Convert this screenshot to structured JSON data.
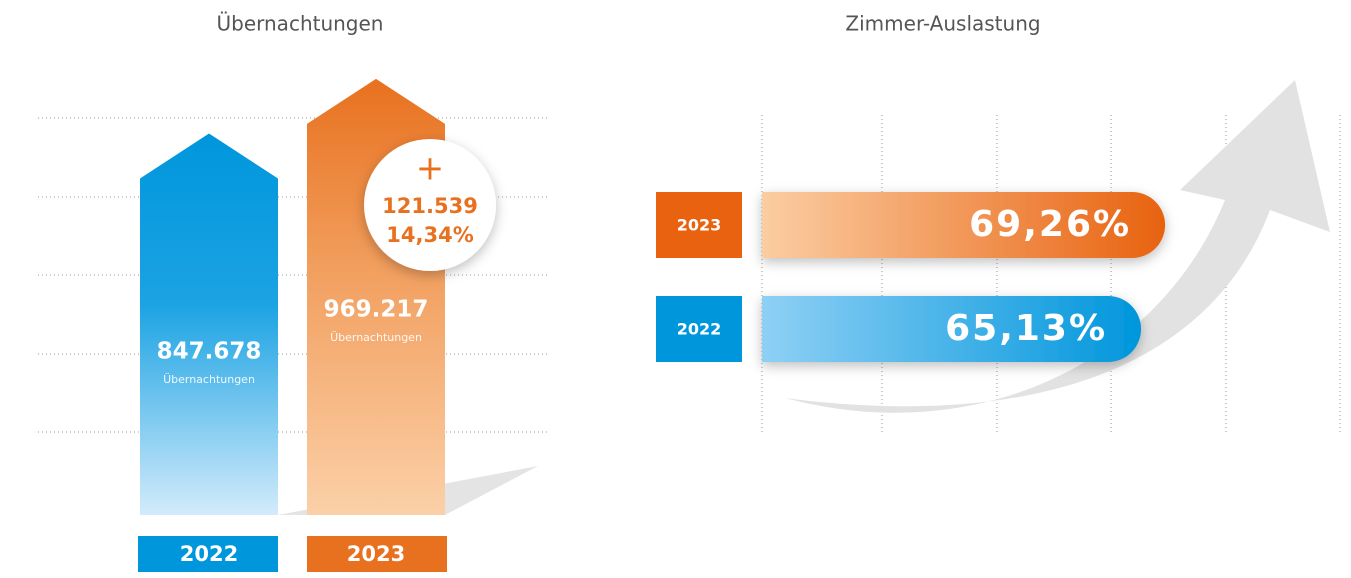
{
  "chart_data": [
    {
      "type": "arrow-bar",
      "title": "Übernachtungen",
      "categories": [
        "2022",
        "2023"
      ],
      "values": [
        847678,
        969217
      ],
      "value_labels": [
        "847.678",
        "969.217"
      ],
      "value_unit": "Übernachtungen",
      "colors": [
        "#0096dc",
        "#e8711f"
      ],
      "annotation": {
        "sign": "+",
        "difference": "121.539",
        "percent": "14,34%"
      }
    },
    {
      "type": "hbar",
      "title": "Zimmer-Auslastung",
      "categories": [
        "2023",
        "2022"
      ],
      "values": [
        69.26,
        65.13
      ],
      "value_labels": [
        "69,26%",
        "65,13%"
      ],
      "colors": [
        "#e8620f",
        "#0096dc"
      ]
    }
  ]
}
